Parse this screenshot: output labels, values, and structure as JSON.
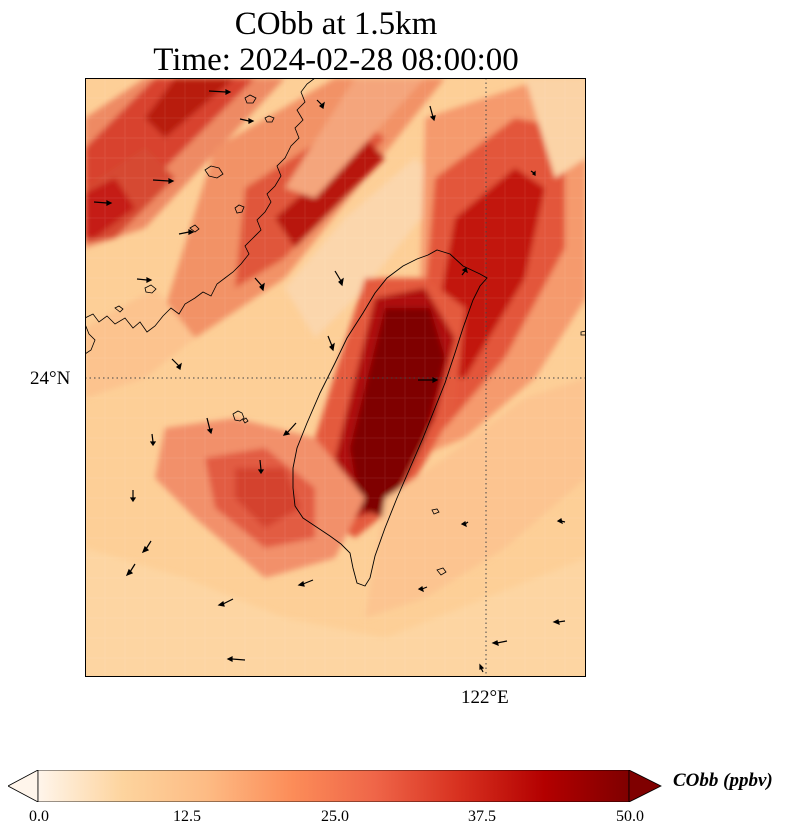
{
  "title": {
    "line1": "CObb at 1.5km",
    "line2": "Time: 2024-02-28 08:00:00"
  },
  "axes": {
    "lat_label": "24°N",
    "lon_label": "122°E"
  },
  "colorbar": {
    "label": "CObb (ppbv)",
    "ticks": [
      "0.0",
      "12.5",
      "25.0",
      "37.5",
      "50.0"
    ],
    "min": 0.0,
    "max": 50.0,
    "extend": "both",
    "colormap": [
      "#fff5eb",
      "#fdd49e",
      "#fdbb84",
      "#fc8d59",
      "#ef6548",
      "#d7301f",
      "#b30000",
      "#7f0000"
    ]
  },
  "map": {
    "variable": "CObb",
    "level": "1.5km",
    "gridlines": "dotted",
    "features": [
      "taiwan-island",
      "china-coastline",
      "wind-vectors"
    ]
  }
}
